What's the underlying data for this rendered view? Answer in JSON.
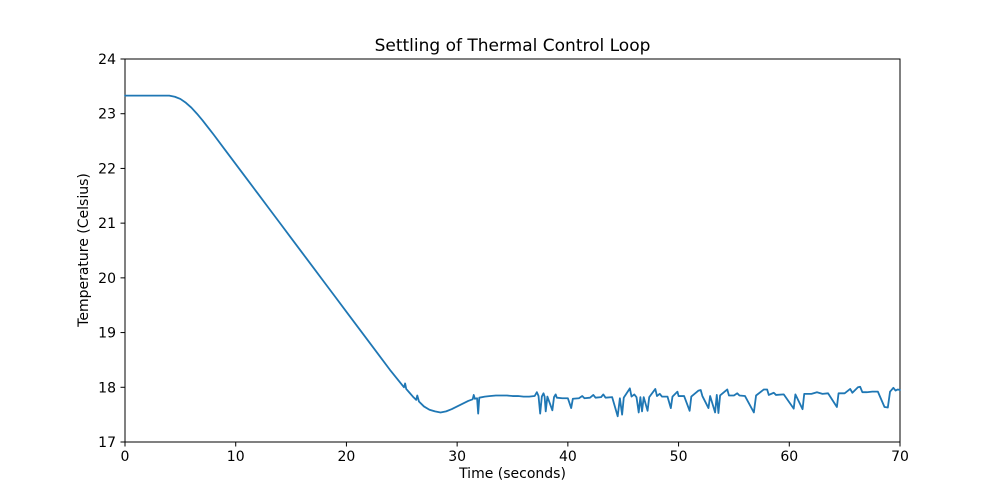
{
  "chart_data": {
    "type": "line",
    "title": "Settling of Thermal Control Loop",
    "xlabel": "Time (seconds)",
    "ylabel": "Temperature (Celsius)",
    "xlim": [
      0,
      70
    ],
    "ylim": [
      17,
      24
    ],
    "x_ticks": [
      0,
      10,
      20,
      30,
      40,
      50,
      60,
      70
    ],
    "y_ticks": [
      17,
      18,
      19,
      20,
      21,
      22,
      23,
      24
    ],
    "grid": false,
    "legend": null,
    "line_color": "#1f77b4",
    "spine_color": "#000000",
    "line_width": 1.8,
    "series": [
      {
        "name": "temperature",
        "points": [
          [
            0,
            23.33
          ],
          [
            0.5,
            23.33
          ],
          [
            1,
            23.33
          ],
          [
            1.5,
            23.33
          ],
          [
            2,
            23.33
          ],
          [
            2.5,
            23.33
          ],
          [
            3,
            23.33
          ],
          [
            3.5,
            23.33
          ],
          [
            4,
            23.33
          ],
          [
            4.5,
            23.31
          ],
          [
            5,
            23.27
          ],
          [
            5.5,
            23.2
          ],
          [
            6,
            23.11
          ],
          [
            6.5,
            23.0
          ],
          [
            7,
            22.88
          ],
          [
            7.5,
            22.75
          ],
          [
            8,
            22.62
          ],
          [
            9,
            22.35
          ],
          [
            10,
            22.08
          ],
          [
            11,
            21.81
          ],
          [
            12,
            21.54
          ],
          [
            13,
            21.27
          ],
          [
            14,
            21.0
          ],
          [
            15,
            20.73
          ],
          [
            16,
            20.46
          ],
          [
            17,
            20.19
          ],
          [
            18,
            19.92
          ],
          [
            19,
            19.65
          ],
          [
            20,
            19.38
          ],
          [
            21,
            19.11
          ],
          [
            22,
            18.84
          ],
          [
            23,
            18.57
          ],
          [
            24,
            18.3
          ],
          [
            25,
            18.05
          ],
          [
            25.2,
            18.0
          ],
          [
            25.3,
            18.07
          ],
          [
            25.4,
            17.97
          ],
          [
            25.7,
            17.9
          ],
          [
            26,
            17.83
          ],
          [
            26.3,
            17.77
          ],
          [
            26.4,
            17.85
          ],
          [
            26.55,
            17.74
          ],
          [
            27,
            17.65
          ],
          [
            27.5,
            17.59
          ],
          [
            28,
            17.56
          ],
          [
            28.5,
            17.54
          ],
          [
            29,
            17.56
          ],
          [
            29.5,
            17.6
          ],
          [
            30,
            17.65
          ],
          [
            30.5,
            17.7
          ],
          [
            31,
            17.75
          ],
          [
            31.4,
            17.78
          ],
          [
            31.5,
            17.86
          ],
          [
            31.6,
            17.79
          ],
          [
            31.8,
            17.8
          ],
          [
            31.9,
            17.52
          ],
          [
            32,
            17.81
          ],
          [
            32.5,
            17.83
          ],
          [
            33,
            17.84
          ],
          [
            33.5,
            17.85
          ],
          [
            34,
            17.85
          ],
          [
            34.5,
            17.85
          ],
          [
            35,
            17.84
          ],
          [
            35.5,
            17.84
          ],
          [
            36,
            17.83
          ],
          [
            36.5,
            17.83
          ],
          [
            37,
            17.84
          ],
          [
            37.2,
            17.91
          ],
          [
            37.35,
            17.84
          ],
          [
            37.5,
            17.52
          ],
          [
            37.65,
            17.83
          ],
          [
            37.8,
            17.89
          ],
          [
            37.9,
            17.83
          ],
          [
            38,
            17.56
          ],
          [
            38.15,
            17.83
          ],
          [
            38.6,
            17.58
          ],
          [
            38.75,
            17.82
          ],
          [
            38.9,
            17.87
          ],
          [
            39,
            17.81
          ],
          [
            39.5,
            17.8
          ],
          [
            40,
            17.8
          ],
          [
            40.3,
            17.62
          ],
          [
            40.45,
            17.79
          ],
          [
            41,
            17.8
          ],
          [
            41.3,
            17.84
          ],
          [
            41.5,
            17.8
          ],
          [
            42,
            17.81
          ],
          [
            42.3,
            17.86
          ],
          [
            42.5,
            17.81
          ],
          [
            43,
            17.82
          ],
          [
            43.2,
            17.87
          ],
          [
            43.4,
            17.81
          ],
          [
            44,
            17.82
          ],
          [
            44.5,
            17.47
          ],
          [
            44.7,
            17.8
          ],
          [
            44.9,
            17.5
          ],
          [
            45.05,
            17.81
          ],
          [
            45.6,
            17.98
          ],
          [
            45.75,
            17.83
          ],
          [
            46,
            17.87
          ],
          [
            46.2,
            17.82
          ],
          [
            46.4,
            17.54
          ],
          [
            46.55,
            17.82
          ],
          [
            46.7,
            17.56
          ],
          [
            46.85,
            17.82
          ],
          [
            47.2,
            17.57
          ],
          [
            47.35,
            17.82
          ],
          [
            47.9,
            17.97
          ],
          [
            48.05,
            17.84
          ],
          [
            48.3,
            17.88
          ],
          [
            48.5,
            17.83
          ],
          [
            49,
            17.83
          ],
          [
            49.3,
            17.62
          ],
          [
            49.45,
            17.83
          ],
          [
            49.9,
            17.92
          ],
          [
            50,
            17.84
          ],
          [
            50.5,
            17.84
          ],
          [
            51,
            17.57
          ],
          [
            51.15,
            17.83
          ],
          [
            51.8,
            17.94
          ],
          [
            52,
            17.95
          ],
          [
            52.15,
            17.84
          ],
          [
            52.7,
            17.62
          ],
          [
            52.85,
            17.84
          ],
          [
            53.3,
            17.54
          ],
          [
            53.45,
            17.86
          ],
          [
            53.6,
            17.53
          ],
          [
            53.75,
            17.85
          ],
          [
            54.4,
            17.96
          ],
          [
            54.55,
            17.85
          ],
          [
            55,
            17.85
          ],
          [
            55.3,
            17.89
          ],
          [
            55.5,
            17.85
          ],
          [
            56,
            17.84
          ],
          [
            56.8,
            17.54
          ],
          [
            57,
            17.85
          ],
          [
            57.7,
            17.96
          ],
          [
            58,
            17.96
          ],
          [
            58.15,
            17.86
          ],
          [
            58.6,
            17.9
          ],
          [
            58.8,
            17.86
          ],
          [
            59.5,
            17.87
          ],
          [
            60.4,
            17.61
          ],
          [
            60.55,
            17.87
          ],
          [
            61.2,
            17.6
          ],
          [
            61.35,
            17.88
          ],
          [
            62,
            17.88
          ],
          [
            62.5,
            17.91
          ],
          [
            63,
            17.88
          ],
          [
            63.5,
            17.89
          ],
          [
            64.3,
            17.64
          ],
          [
            64.45,
            17.89
          ],
          [
            65,
            17.89
          ],
          [
            65.5,
            17.97
          ],
          [
            65.7,
            17.9
          ],
          [
            66.2,
            18.0
          ],
          [
            66.4,
            18.01
          ],
          [
            66.6,
            17.91
          ],
          [
            67,
            17.91
          ],
          [
            67.5,
            17.92
          ],
          [
            68,
            17.92
          ],
          [
            68.6,
            17.64
          ],
          [
            68.9,
            17.63
          ],
          [
            69.1,
            17.92
          ],
          [
            69.4,
            17.99
          ],
          [
            69.6,
            17.94
          ],
          [
            69.8,
            17.96
          ],
          [
            70,
            17.95
          ]
        ]
      }
    ]
  }
}
